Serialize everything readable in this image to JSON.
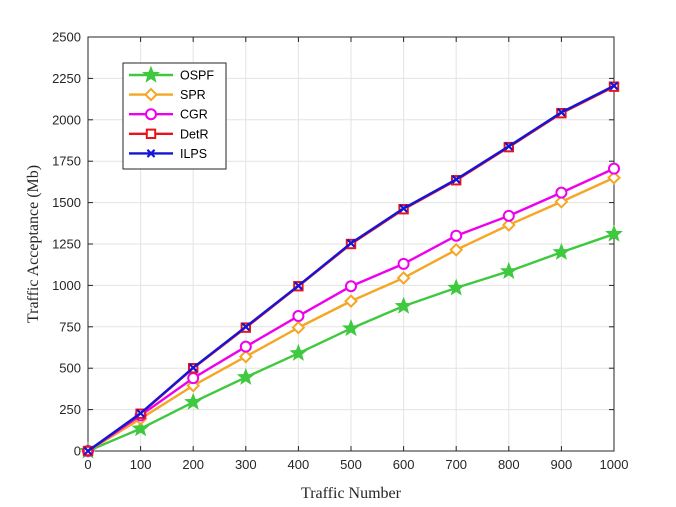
{
  "chart_data": {
    "type": "line",
    "title": "",
    "xlabel": "Traffic Number",
    "ylabel": "Traffic Acceptance (Mb)",
    "x": [
      0,
      100,
      200,
      300,
      400,
      500,
      600,
      700,
      800,
      900,
      1000
    ],
    "xlim": [
      0,
      1000
    ],
    "ylim": [
      0,
      2500
    ],
    "xticks": [
      "0",
      "100",
      "200",
      "300",
      "400",
      "500",
      "600",
      "700",
      "800",
      "900",
      "1000"
    ],
    "yticks": [
      "0",
      "250",
      "500",
      "750",
      "1000",
      "1250",
      "1500",
      "1750",
      "2000",
      "2250",
      "2500"
    ],
    "grid": true,
    "legend_position": "top-left",
    "series": [
      {
        "name": "OSPF",
        "color": "#3ec93e",
        "marker": "star",
        "values": [
          0,
          135,
          295,
          445,
          590,
          740,
          875,
          985,
          1085,
          1200,
          1310
        ]
      },
      {
        "name": "SPR",
        "color": "#f5a623",
        "marker": "diamond",
        "values": [
          0,
          195,
          395,
          570,
          745,
          905,
          1045,
          1215,
          1365,
          1505,
          1650
        ]
      },
      {
        "name": "CGR",
        "color": "#ee00ee",
        "marker": "circle",
        "values": [
          0,
          215,
          440,
          630,
          815,
          995,
          1130,
          1300,
          1420,
          1560,
          1705
        ]
      },
      {
        "name": "DetR",
        "color": "#e8141c",
        "marker": "square",
        "values": [
          0,
          225,
          500,
          745,
          995,
          1250,
          1460,
          1635,
          1835,
          2040,
          2200
        ]
      },
      {
        "name": "ILPS",
        "color": "#1515d8",
        "marker": "x",
        "values": [
          0,
          228,
          503,
          750,
          998,
          1255,
          1465,
          1640,
          1840,
          2045,
          2205
        ]
      }
    ]
  }
}
